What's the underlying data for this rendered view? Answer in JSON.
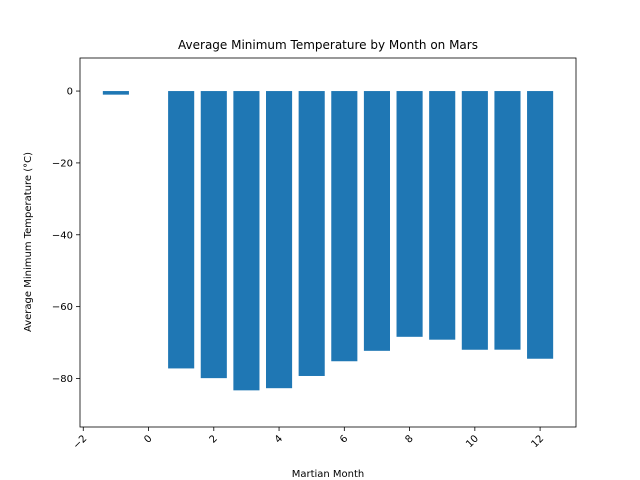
{
  "chart_data": {
    "type": "bar",
    "title": "Average Minimum Temperature by Month on Mars",
    "xlabel": "Martian Month",
    "ylabel": "Average Minimum Temperature (°C)",
    "x": [
      -1,
      1,
      2,
      3,
      4,
      5,
      6,
      7,
      8,
      9,
      10,
      11,
      12
    ],
    "values": [
      -1,
      -77.2,
      -79.9,
      -83.3,
      -82.7,
      -79.3,
      -75.2,
      -72.3,
      -68.4,
      -69.2,
      -72.0,
      -71.98,
      -74.5
    ],
    "xlim": [
      -2.1,
      13.1
    ],
    "ylim": [
      -93.5,
      9.2
    ],
    "xticks": [
      -2,
      0,
      2,
      4,
      6,
      8,
      10,
      12
    ],
    "xtick_labels": [
      "−2",
      "0",
      "2",
      "4",
      "6",
      "8",
      "10",
      "12"
    ],
    "yticks": [
      0,
      -20,
      -40,
      -60,
      -80
    ],
    "ytick_labels": [
      "0",
      "−20",
      "−40",
      "−60",
      "−80"
    ],
    "bar_color": "#1f77b4",
    "grid": false,
    "xtick_rotation_deg": 45
  }
}
